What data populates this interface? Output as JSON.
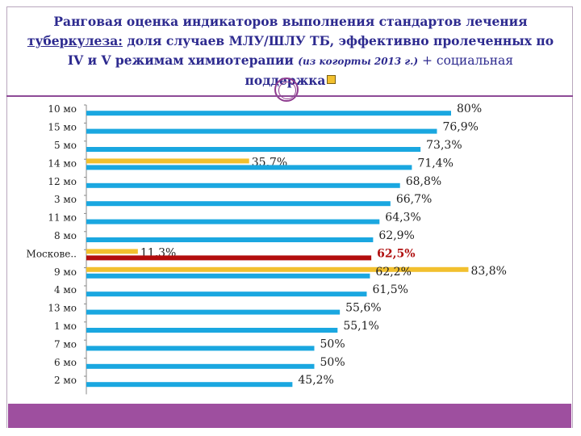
{
  "title": {
    "part1": "Ранговая оценка индикаторов выполнения стандартов лечения",
    "part2_underlined": "туберкулеза:",
    "part2_rest": " доля случаев МЛУ/ШЛУ ТБ, эффективно пролеченных по",
    "part3": "IV и V режимам химиотерапии",
    "part3_small": "(из когорты 2013 г.)",
    "part3_rest": " + социальная",
    "part4": "поддержка"
  },
  "colors": {
    "main_bar": "#1aa7e0",
    "support_bar": "#f2c02e",
    "moscow_bar": "#b30d0d",
    "accent": "#9e4f9f"
  },
  "chart_data": {
    "type": "bar",
    "orientation": "horizontal",
    "categories": [
      "10 мо",
      "15 мо",
      "5 мо",
      "14 мо",
      "12 мо",
      "3 мо",
      "11 мо",
      "8 мо",
      "Москове..",
      "9 мо",
      "4 мо",
      "13 мо",
      "1 мо",
      "7 мо",
      "6 мо",
      "2 мо"
    ],
    "series": [
      {
        "values": [
          80,
          76.9,
          73.3,
          71.4,
          68.8,
          66.7,
          64.3,
          62.9,
          62.5,
          62.2,
          61.5,
          55.6,
          55.1,
          50,
          50,
          45.2
        ]
      },
      {
        "values": [
          null,
          null,
          null,
          35.7,
          null,
          null,
          null,
          null,
          11.3,
          83.8,
          null,
          null,
          null,
          null,
          null,
          null
        ]
      }
    ],
    "value_labels": [
      "80%",
      "76,9%",
      "73,3%",
      "71,4%",
      "68,8%",
      "66,7%",
      "64,3%",
      "62,9%",
      "62,5%",
      "62,2%",
      "61,5%",
      "55,6%",
      "55,1%",
      "50%",
      "50%",
      "45,2%"
    ],
    "support_labels": [
      "",
      "",
      "",
      "35,7%",
      "",
      "",
      "",
      "",
      "11,3%",
      "83,8%",
      "",
      "",
      "",
      "",
      "",
      ""
    ],
    "highlight_category": "Москове..",
    "xlim": [
      0,
      100
    ],
    "grid": false,
    "legend": "none"
  }
}
